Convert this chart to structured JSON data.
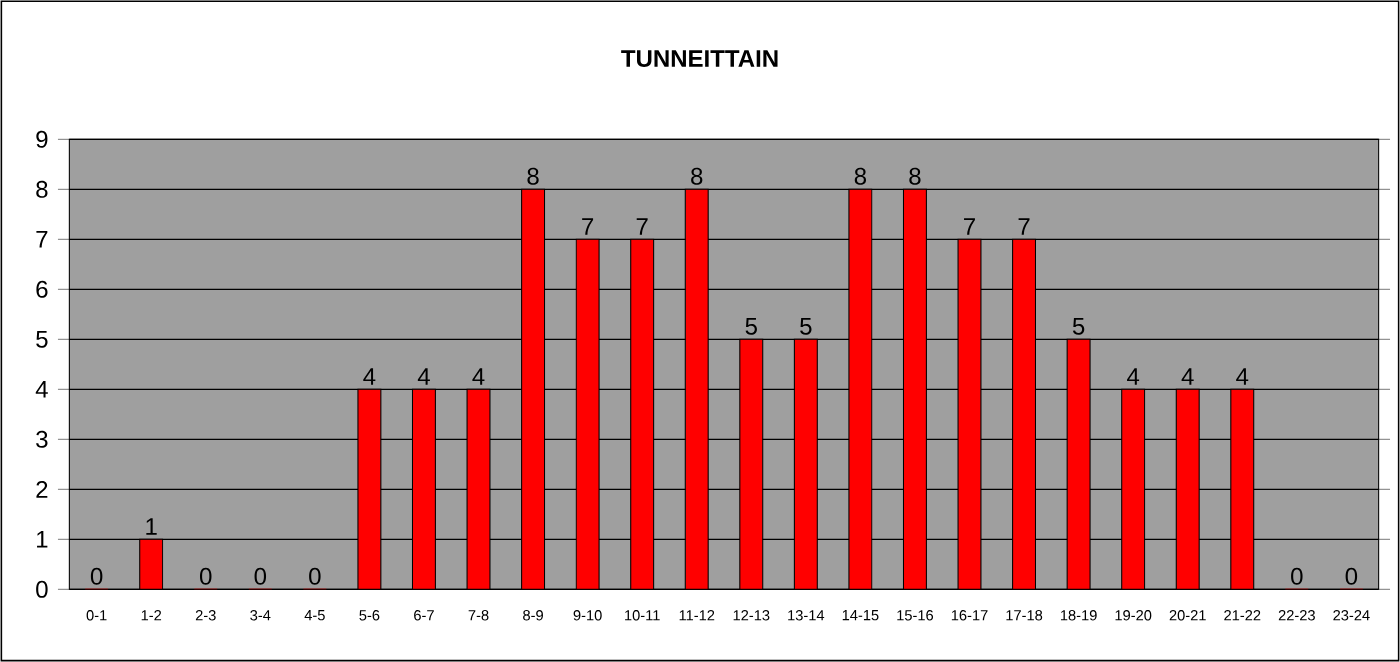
{
  "chart_data": {
    "type": "bar",
    "title": "TUNNEITTAIN",
    "categories": [
      "0-1",
      "1-2",
      "2-3",
      "3-4",
      "4-5",
      "5-6",
      "6-7",
      "7-8",
      "8-9",
      "9-10",
      "10-11",
      "11-12",
      "12-13",
      "13-14",
      "14-15",
      "15-16",
      "16-17",
      "17-18",
      "18-19",
      "19-20",
      "20-21",
      "21-22",
      "22-23",
      "23-24"
    ],
    "values": [
      0,
      1,
      0,
      0,
      0,
      4,
      4,
      4,
      8,
      7,
      7,
      8,
      5,
      5,
      8,
      8,
      7,
      7,
      5,
      4,
      4,
      4,
      0,
      0
    ],
    "color": "#ff0000",
    "ylim": [
      0,
      9
    ],
    "yticks": [
      0,
      1,
      2,
      3,
      4,
      5,
      6,
      7,
      8,
      9
    ],
    "grid": "y",
    "data_labels": true
  }
}
